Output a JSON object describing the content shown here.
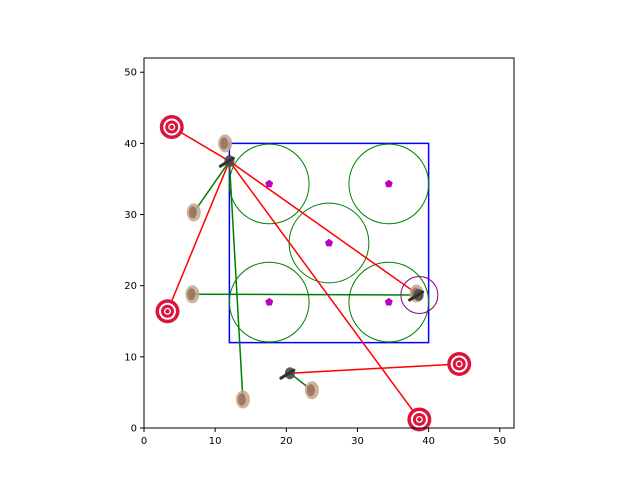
{
  "chart_data": {
    "type": "scatter",
    "title": "",
    "xlabel": "",
    "ylabel": "",
    "xlim": [
      0,
      52
    ],
    "ylim": [
      0,
      52
    ],
    "xticks": [
      0,
      10,
      20,
      30,
      40,
      50
    ],
    "yticks": [
      0,
      10,
      20,
      30,
      40,
      50
    ],
    "grid": false,
    "aspect": "equal",
    "colors": {
      "box": "#0000ff",
      "circles": "#008000",
      "centers": "#bf00bf",
      "red_lines": "#ff0000",
      "green_lines": "#008000",
      "targets": "#dc143c",
      "highlight_ring": "#800080"
    },
    "box": {
      "x0": 12,
      "y0": 12,
      "x1": 40,
      "y1": 40
    },
    "green_circles": [
      {
        "x": 17.6,
        "y": 34.3,
        "r": 5.6
      },
      {
        "x": 34.4,
        "y": 34.3,
        "r": 5.6
      },
      {
        "x": 26.0,
        "y": 26.0,
        "r": 5.6
      },
      {
        "x": 17.6,
        "y": 17.7,
        "r": 5.6
      },
      {
        "x": 34.4,
        "y": 17.7,
        "r": 5.6
      }
    ],
    "pentagon_centers": [
      {
        "x": 17.6,
        "y": 34.3
      },
      {
        "x": 34.4,
        "y": 34.3
      },
      {
        "x": 26.0,
        "y": 26.0
      },
      {
        "x": 17.6,
        "y": 17.7
      },
      {
        "x": 34.4,
        "y": 17.7
      }
    ],
    "targets": [
      {
        "x": 3.9,
        "y": 42.3
      },
      {
        "x": 3.3,
        "y": 16.4
      },
      {
        "x": 44.3,
        "y": 9.0
      },
      {
        "x": 38.7,
        "y": 1.2
      }
    ],
    "highlight_ring": {
      "x": 38.7,
      "y": 18.7,
      "r": 2.6
    },
    "ball_icons": [
      {
        "x": 7.0,
        "y": 30.3
      },
      {
        "x": 6.8,
        "y": 18.8
      },
      {
        "x": 13.9,
        "y": 4.0
      },
      {
        "x": 23.6,
        "y": 5.3
      },
      {
        "x": 11.4,
        "y": 40.0
      },
      {
        "x": 38.3,
        "y": 18.9
      }
    ],
    "player_icons": [
      {
        "x": 12.0,
        "y": 37.5
      },
      {
        "x": 20.5,
        "y": 7.7
      },
      {
        "x": 38.6,
        "y": 18.7
      }
    ],
    "red_lines": [
      {
        "x": [
          3.9,
          12.0
        ],
        "y": [
          42.3,
          37.5
        ]
      },
      {
        "x": [
          12.0,
          38.6
        ],
        "y": [
          37.5,
          18.7
        ]
      },
      {
        "x": [
          3.3,
          12.0
        ],
        "y": [
          16.4,
          37.5
        ]
      },
      {
        "x": [
          12.0,
          38.7
        ],
        "y": [
          37.5,
          1.2
        ]
      },
      {
        "x": [
          20.5,
          44.3
        ],
        "y": [
          7.7,
          9.0
        ]
      }
    ],
    "green_lines": [
      {
        "x": [
          12.0,
          7.0
        ],
        "y": [
          37.5,
          30.3
        ]
      },
      {
        "x": [
          12.0,
          13.9
        ],
        "y": [
          37.5,
          4.0
        ]
      },
      {
        "x": [
          6.8,
          38.6
        ],
        "y": [
          18.8,
          18.7
        ]
      },
      {
        "x": [
          20.5,
          23.6
        ],
        "y": [
          7.7,
          5.3
        ]
      }
    ]
  }
}
